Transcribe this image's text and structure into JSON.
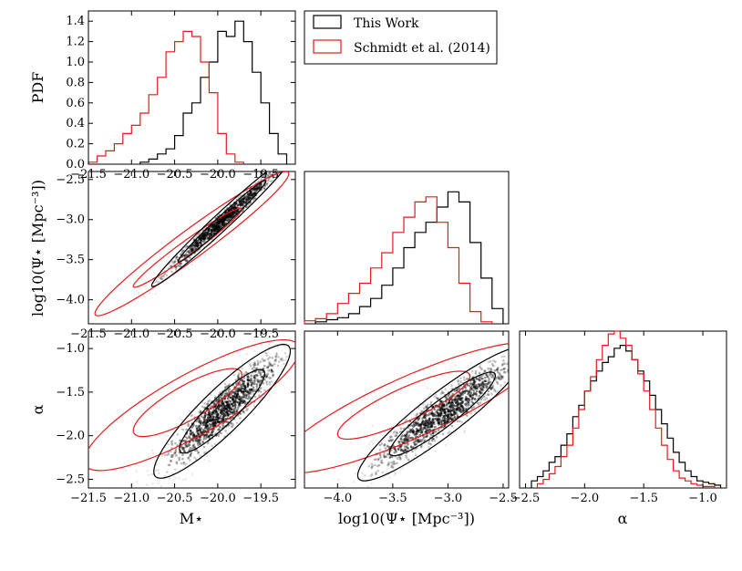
{
  "legend": {
    "this_work": "This Work",
    "schmidt": "Schmidt et al. (2014)"
  },
  "colors": {
    "this_work": "#000000",
    "schmidt": "#e41a1c"
  },
  "labels": {
    "pdf": "PDF",
    "psi_y": "log10(Ψ⋆ [Mpc⁻³])",
    "alpha_y": "α",
    "mstar_x": "M⋆",
    "psi_x": "log10(Ψ⋆ [Mpc⁻³])",
    "alpha_x": "α"
  },
  "chart_data": [
    {
      "panel": "M-pdf",
      "type": "histogram",
      "xlim": [
        -21.5,
        -19.1
      ],
      "ylim": [
        0,
        1.5
      ],
      "xticks": [
        -21.5,
        -21.0,
        -20.5,
        -20.0,
        -19.5
      ],
      "yticks": [
        0.0,
        0.2,
        0.4,
        0.6,
        0.8,
        1.0,
        1.2,
        1.4
      ],
      "ylabel": "PDF",
      "series": [
        {
          "name": "This Work",
          "edges": [
            -20.9,
            -20.8,
            -20.7,
            -20.6,
            -20.5,
            -20.4,
            -20.3,
            -20.2,
            -20.1,
            -20.0,
            -19.9,
            -19.8,
            -19.7,
            -19.6,
            -19.5,
            -19.4,
            -19.3,
            -19.2
          ],
          "values": [
            0.02,
            0.05,
            0.1,
            0.15,
            0.28,
            0.5,
            0.6,
            0.85,
            1.0,
            1.3,
            1.25,
            1.4,
            1.2,
            0.9,
            0.6,
            0.3,
            0.1
          ]
        },
        {
          "name": "Schmidt et al. (2014)",
          "edges": [
            -21.5,
            -21.4,
            -21.3,
            -21.2,
            -21.1,
            -21.0,
            -20.9,
            -20.8,
            -20.7,
            -20.6,
            -20.5,
            -20.4,
            -20.3,
            -20.2,
            -20.1,
            -20.0,
            -19.9,
            -19.8,
            -19.7
          ],
          "values": [
            0.02,
            0.08,
            0.13,
            0.2,
            0.3,
            0.38,
            0.5,
            0.68,
            0.85,
            1.1,
            1.2,
            1.3,
            1.25,
            1.0,
            0.7,
            0.3,
            0.1,
            0.02
          ]
        }
      ]
    },
    {
      "panel": "M-psi",
      "type": "scatter-contour",
      "xlim": [
        -21.5,
        -19.1
      ],
      "ylim": [
        -4.3,
        -2.4
      ],
      "xticks": [
        -21.5,
        -21.0,
        -20.5,
        -20.0,
        -19.5
      ],
      "yticks": [
        -2.5,
        -3.0,
        -3.5,
        -4.0
      ],
      "ylabel": "log10(Ψ⋆ [Mpc⁻³])"
    },
    {
      "panel": "psi-pdf",
      "type": "histogram",
      "xlim": [
        -4.3,
        -2.45
      ],
      "ylim": [
        0,
        1.5
      ],
      "series": [
        {
          "name": "This Work",
          "edges": [
            -4.2,
            -4.1,
            -4.0,
            -3.9,
            -3.8,
            -3.7,
            -3.6,
            -3.5,
            -3.4,
            -3.3,
            -3.2,
            -3.1,
            -3.0,
            -2.9,
            -2.8,
            -2.7,
            -2.6,
            -2.5
          ],
          "values": [
            0.02,
            0.04,
            0.06,
            0.1,
            0.17,
            0.25,
            0.38,
            0.55,
            0.75,
            0.9,
            1.0,
            1.15,
            1.3,
            1.2,
            0.8,
            0.45,
            0.15
          ]
        },
        {
          "name": "Schmidt et al. (2014)",
          "edges": [
            -4.3,
            -4.2,
            -4.1,
            -4.0,
            -3.9,
            -3.8,
            -3.7,
            -3.6,
            -3.5,
            -3.4,
            -3.3,
            -3.2,
            -3.1,
            -3.0,
            -2.9,
            -2.8,
            -2.7,
            -2.6
          ],
          "values": [
            0.03,
            0.05,
            0.1,
            0.2,
            0.3,
            0.4,
            0.55,
            0.7,
            0.9,
            1.05,
            1.2,
            1.25,
            1.0,
            0.75,
            0.4,
            0.12,
            0.02
          ]
        }
      ]
    },
    {
      "panel": "M-alpha",
      "type": "scatter-contour",
      "xlim": [
        -21.5,
        -19.1
      ],
      "ylim": [
        -2.6,
        -0.8
      ],
      "xticks": [
        -21.5,
        -21.0,
        -20.5,
        -20.0,
        -19.5
      ],
      "yticks": [
        -1.0,
        -1.5,
        -2.0,
        -2.5
      ],
      "xlabel": "M⋆",
      "ylabel": "α"
    },
    {
      "panel": "psi-alpha",
      "type": "scatter-contour",
      "xlim": [
        -4.3,
        -2.45
      ],
      "ylim": [
        -2.6,
        -0.8
      ],
      "xticks": [
        -4.0,
        -3.5,
        -3.0,
        -2.5
      ],
      "xlabel": "log10(Ψ⋆ [Mpc⁻³])"
    },
    {
      "panel": "alpha-pdf",
      "type": "histogram",
      "xlim": [
        -2.55,
        -0.8
      ],
      "ylim": [
        0,
        1.1
      ],
      "xticks": [
        -2.5,
        -2.0,
        -1.5,
        -1.0
      ],
      "xlabel": "α",
      "series": [
        {
          "name": "This Work",
          "edges": [
            -2.45,
            -2.4,
            -2.35,
            -2.3,
            -2.25,
            -2.2,
            -2.15,
            -2.1,
            -2.05,
            -2.0,
            -1.95,
            -1.9,
            -1.85,
            -1.8,
            -1.75,
            -1.7,
            -1.65,
            -1.6,
            -1.55,
            -1.5,
            -1.45,
            -1.4,
            -1.35,
            -1.3,
            -1.25,
            -1.2,
            -1.15,
            -1.1,
            -1.05,
            -1.0,
            -0.95,
            -0.9,
            -0.85
          ],
          "values": [
            0.05,
            0.08,
            0.12,
            0.18,
            0.22,
            0.3,
            0.38,
            0.5,
            0.58,
            0.68,
            0.75,
            0.82,
            0.88,
            0.92,
            0.98,
            1.0,
            0.96,
            0.9,
            0.82,
            0.75,
            0.65,
            0.55,
            0.45,
            0.35,
            0.25,
            0.18,
            0.12,
            0.08,
            0.05,
            0.04,
            0.03,
            0.02
          ]
        },
        {
          "name": "Schmidt et al. (2014)",
          "edges": [
            -2.4,
            -2.35,
            -2.3,
            -2.25,
            -2.2,
            -2.15,
            -2.1,
            -2.05,
            -2.0,
            -1.95,
            -1.9,
            -1.85,
            -1.8,
            -1.75,
            -1.7,
            -1.65,
            -1.6,
            -1.55,
            -1.5,
            -1.45,
            -1.4,
            -1.35,
            -1.3,
            -1.25,
            -1.2,
            -1.15,
            -1.1,
            -1.05,
            -1.0,
            -0.95,
            -0.9
          ],
          "values": [
            0.03,
            0.06,
            0.1,
            0.15,
            0.22,
            0.3,
            0.42,
            0.55,
            0.68,
            0.78,
            0.9,
            1.0,
            1.08,
            1.1,
            1.05,
            1.0,
            0.9,
            0.8,
            0.68,
            0.55,
            0.42,
            0.3,
            0.2,
            0.12,
            0.07,
            0.05,
            0.03,
            0.02,
            0.01,
            0.01
          ]
        }
      ]
    }
  ]
}
